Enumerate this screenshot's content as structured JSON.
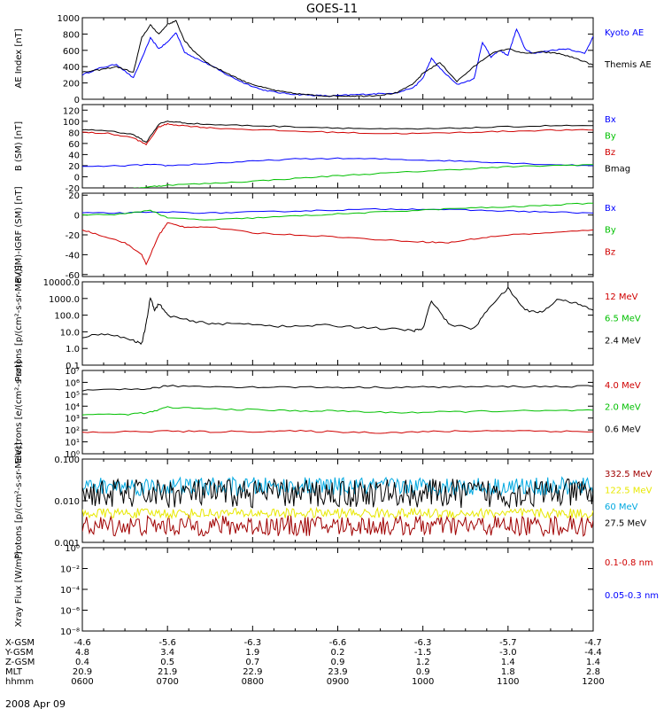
{
  "title": "GOES-11",
  "date_label": "2008 Apr 09",
  "colors": {
    "black": "#000000",
    "blue": "#0000ff",
    "green": "#00c000",
    "red": "#d00000",
    "darkred": "#a00000",
    "yellow": "#e8e800",
    "cyan": "#00a8e0"
  },
  "ephemeris": {
    "row_labels": [
      "X-GSM",
      "Y-GSM",
      "Z-GSM",
      "MLT",
      "hhmm"
    ],
    "columns": [
      {
        "x": "-4.6",
        "y": "4.8",
        "z": "0.4",
        "mlt": "20.9",
        "hhmm": "0600"
      },
      {
        "x": "-5.6",
        "y": "3.4",
        "z": "0.5",
        "mlt": "21.9",
        "hhmm": "0700"
      },
      {
        "x": "-6.3",
        "y": "1.9",
        "z": "0.7",
        "mlt": "22.9",
        "hhmm": "0800"
      },
      {
        "x": "-6.6",
        "y": "0.2",
        "z": "0.9",
        "mlt": "23.9",
        "hhmm": "0900"
      },
      {
        "x": "-6.3",
        "y": "-1.5",
        "z": "1.2",
        "mlt": "0.9",
        "hhmm": "1000"
      },
      {
        "x": "-5.7",
        "y": "-3.0",
        "z": "1.4",
        "mlt": "1.8",
        "hhmm": "1100"
      },
      {
        "x": "-4.7",
        "y": "-4.4",
        "z": "1.4",
        "mlt": "2.8",
        "hhmm": "1200"
      }
    ]
  },
  "chart_data": [
    {
      "type": "line",
      "id": "ae",
      "ylabel": "AE Index [nT]",
      "ylim": [
        0,
        1000
      ],
      "scale": "linear",
      "yticks": [
        0,
        200,
        400,
        600,
        800,
        1000
      ],
      "yticklabels": [
        "0",
        "200",
        "400",
        "600",
        "800",
        "1000"
      ],
      "x_hours": [
        6,
        12
      ],
      "series": [
        {
          "name": "Kyoto AE",
          "color": "#0000ff",
          "t": [
            6.0,
            6.2,
            6.4,
            6.6,
            6.8,
            6.9,
            7.0,
            7.1,
            7.2,
            7.3,
            7.5,
            7.7,
            7.9,
            8.1,
            8.3,
            8.5,
            8.7,
            8.9,
            9.1,
            9.3,
            9.5,
            9.7,
            9.9,
            10.0,
            10.1,
            10.2,
            10.4,
            10.6,
            10.7,
            10.8,
            10.9,
            11.0,
            11.1,
            11.2,
            11.3,
            11.5,
            11.7,
            11.9,
            12.0
          ],
          "v": [
            300,
            380,
            430,
            260,
            750,
            620,
            700,
            820,
            580,
            520,
            420,
            300,
            200,
            120,
            80,
            60,
            50,
            40,
            50,
            60,
            70,
            80,
            150,
            260,
            500,
            380,
            180,
            250,
            700,
            520,
            600,
            540,
            860,
            620,
            560,
            600,
            620,
            560,
            770
          ]
        },
        {
          "name": "Themis AE",
          "color": "#000000",
          "t": [
            6.0,
            6.2,
            6.4,
            6.6,
            6.7,
            6.8,
            6.9,
            7.0,
            7.1,
            7.2,
            7.3,
            7.5,
            7.7,
            7.9,
            8.1,
            8.3,
            8.5,
            8.7,
            8.9,
            9.1,
            9.3,
            9.5,
            9.7,
            9.9,
            10.0,
            10.2,
            10.4,
            10.6,
            10.8,
            11.0,
            11.2,
            11.4,
            11.6,
            11.8,
            12.0
          ],
          "v": [
            330,
            360,
            400,
            330,
            760,
            910,
            800,
            920,
            960,
            720,
            600,
            420,
            320,
            220,
            150,
            100,
            70,
            50,
            40,
            40,
            40,
            50,
            80,
            200,
            320,
            450,
            220,
            400,
            560,
            620,
            560,
            580,
            560,
            500,
            420
          ]
        }
      ]
    },
    {
      "type": "line",
      "id": "bsm",
      "ylabel": "B (SM) [nT]",
      "ylim": [
        -20,
        130
      ],
      "scale": "linear",
      "yticks": [
        -20,
        0,
        20,
        40,
        60,
        80,
        100,
        120
      ],
      "yticklabels": [
        "-20",
        "0",
        "20",
        "40",
        "60",
        "80",
        "100",
        "120"
      ],
      "series": [
        {
          "name": "Bx",
          "color": "#0000ff",
          "t": [
            6.0,
            6.5,
            6.8,
            7.0,
            7.5,
            8.0,
            8.5,
            9.0,
            9.5,
            10.0,
            10.5,
            11.0,
            11.5,
            12.0
          ],
          "v": [
            18,
            20,
            22,
            20,
            24,
            28,
            32,
            33,
            32,
            30,
            28,
            25,
            22,
            20
          ]
        },
        {
          "name": "By",
          "color": "#00c000",
          "t": [
            6.0,
            6.5,
            6.8,
            7.0,
            7.5,
            8.0,
            8.5,
            9.0,
            9.5,
            10.0,
            10.5,
            11.0,
            11.5,
            12.0
          ],
          "v": [
            -25,
            -22,
            -18,
            -15,
            -12,
            -8,
            -3,
            2,
            6,
            10,
            14,
            18,
            20,
            22
          ]
        },
        {
          "name": "Bz",
          "color": "#d00000",
          "t": [
            6.0,
            6.3,
            6.6,
            6.75,
            6.9,
            7.0,
            7.2,
            7.5,
            8.0,
            8.5,
            9.0,
            9.5,
            10.0,
            10.5,
            11.0,
            11.5,
            12.0
          ],
          "v": [
            80,
            78,
            70,
            58,
            90,
            95,
            92,
            88,
            85,
            82,
            80,
            78,
            78,
            80,
            82,
            84,
            84
          ]
        },
        {
          "name": "Bmag",
          "color": "#000000",
          "t": [
            6.0,
            6.3,
            6.6,
            6.75,
            6.9,
            7.0,
            7.2,
            7.5,
            8.0,
            8.5,
            9.0,
            9.5,
            10.0,
            10.5,
            11.0,
            11.5,
            12.0
          ],
          "v": [
            85,
            83,
            76,
            62,
            95,
            100,
            97,
            94,
            92,
            90,
            88,
            86,
            86,
            88,
            90,
            92,
            92
          ]
        }
      ]
    },
    {
      "type": "line",
      "id": "bdiff",
      "ylabel": "B (SM)-IGRF (SM) [nT]",
      "ylim": [
        -62,
        22
      ],
      "scale": "linear",
      "yticks": [
        -60,
        -40,
        -20,
        0,
        20
      ],
      "yticklabels": [
        "-60",
        "-40",
        "-20",
        "0",
        "20"
      ],
      "series": [
        {
          "name": "Bx",
          "color": "#0000ff",
          "t": [
            6.0,
            6.5,
            7.0,
            7.5,
            8.0,
            8.5,
            9.0,
            9.5,
            10.0,
            10.5,
            11.0,
            11.5,
            12.0
          ],
          "v": [
            2,
            2,
            3,
            2,
            3,
            4,
            5,
            6,
            6,
            5,
            4,
            3,
            2
          ]
        },
        {
          "name": "By",
          "color": "#00c000",
          "t": [
            6.0,
            6.5,
            6.8,
            7.0,
            7.5,
            8.0,
            8.5,
            9.0,
            9.5,
            10.0,
            10.5,
            11.0,
            11.5,
            12.0
          ],
          "v": [
            0,
            1,
            5,
            -3,
            -5,
            -3,
            -1,
            1,
            3,
            5,
            7,
            8,
            10,
            12
          ]
        },
        {
          "name": "Bz",
          "color": "#d00000",
          "t": [
            6.0,
            6.2,
            6.5,
            6.7,
            6.75,
            6.9,
            7.0,
            7.2,
            7.5,
            8.0,
            8.5,
            9.0,
            9.5,
            10.0,
            10.3,
            10.6,
            11.0,
            11.5,
            12.0
          ],
          "v": [
            -15,
            -20,
            -28,
            -40,
            -50,
            -20,
            -8,
            -12,
            -12,
            -18,
            -20,
            -22,
            -25,
            -27,
            -28,
            -24,
            -20,
            -18,
            -15
          ]
        }
      ]
    },
    {
      "type": "line",
      "id": "protons_low",
      "ylabel": "Protons [p/(cm²-s-sr-MeV)]",
      "ylim": [
        0.1,
        10000
      ],
      "scale": "log",
      "yticks": [
        0.1,
        1,
        10,
        100,
        1000,
        10000
      ],
      "yticklabels": [
        "0.1",
        "1.0",
        "10.0",
        "100.0",
        "1000.0",
        "10000.0"
      ],
      "series": [
        {
          "name": "12 MeV",
          "color": "#d00000",
          "t": [],
          "v": []
        },
        {
          "name": "6.5 MeV",
          "color": "#00c000",
          "t": [],
          "v": []
        },
        {
          "name": "2.4 MeV",
          "color": "#000000",
          "t": [
            6.0,
            6.3,
            6.6,
            6.7,
            6.75,
            6.8,
            6.85,
            6.9,
            7.0,
            7.3,
            7.6,
            8.0,
            8.4,
            8.8,
            9.2,
            9.6,
            9.9,
            10.0,
            10.1,
            10.3,
            10.6,
            10.8,
            11.0,
            11.2,
            11.4,
            11.6,
            11.8,
            12.0
          ],
          "v": [
            5,
            8,
            3,
            2,
            30,
            1200,
            200,
            500,
            100,
            40,
            30,
            30,
            20,
            25,
            20,
            15,
            12,
            15,
            800,
            30,
            15,
            400,
            4000,
            200,
            150,
            1000,
            500,
            200
          ]
        }
      ]
    },
    {
      "type": "line",
      "id": "electrons",
      "ylabel": "Electrons [e/(cm²-s-sr)]",
      "ylim": [
        1,
        10000000
      ],
      "scale": "log",
      "yticks": [
        1,
        10,
        100,
        1000,
        10000,
        100000,
        1000000,
        10000000
      ],
      "yticklabels": [
        "10⁰",
        "10¹",
        "10²",
        "10³",
        "10⁴",
        "10⁵",
        "10⁶",
        "10⁷"
      ],
      "series": [
        {
          "name": "4.0 MeV",
          "color": "#d00000",
          "t": [
            6.0,
            6.5,
            7.0,
            7.5,
            8.0,
            8.5,
            9.0,
            9.5,
            10.0,
            10.5,
            11.0,
            11.5,
            12.0
          ],
          "v": [
            60,
            70,
            80,
            70,
            75,
            80,
            70,
            60,
            70,
            80,
            90,
            80,
            70
          ]
        },
        {
          "name": "2.0 MeV",
          "color": "#00c000",
          "t": [
            6.0,
            6.5,
            6.8,
            7.0,
            7.5,
            8.0,
            8.5,
            9.0,
            9.5,
            10.0,
            10.5,
            11.0,
            11.5,
            12.0
          ],
          "v": [
            2000,
            2000,
            3000,
            8000,
            6000,
            5000,
            4000,
            4000,
            3000,
            3000,
            3500,
            4000,
            4000,
            4500
          ]
        },
        {
          "name": "0.6 MeV",
          "color": "#000000",
          "t": [
            6.0,
            6.5,
            6.8,
            7.0,
            7.5,
            8.0,
            8.5,
            9.0,
            9.5,
            10.0,
            10.5,
            11.0,
            11.5,
            12.0
          ],
          "v": [
            200000,
            250000,
            300000,
            500000,
            450000,
            400000,
            400000,
            380000,
            380000,
            400000,
            420000,
            450000,
            450000,
            460000
          ]
        }
      ]
    },
    {
      "type": "line",
      "id": "protons_high",
      "ylabel": "Protons [p/(cm²-s-sr-MeV)]",
      "ylim": [
        0.001,
        0.1
      ],
      "scale": "log",
      "yticks": [
        0.001,
        0.01,
        0.1
      ],
      "yticklabels": [
        "0.001",
        "0.010",
        "0.100"
      ],
      "series": [
        {
          "name": "332.5 MeV",
          "color": "#a00000",
          "level": 0.0025,
          "spread": 0.25
        },
        {
          "name": "122.5 MeV",
          "color": "#e8e800",
          "level": 0.005,
          "spread": 0.12
        },
        {
          "name": "60 MeV",
          "color": "#00a8e0",
          "level": 0.022,
          "spread": 0.22
        },
        {
          "name": "27.5 MeV",
          "color": "#000000",
          "level": 0.015,
          "spread": 0.35
        }
      ]
    },
    {
      "type": "line",
      "id": "xray",
      "ylabel": "Xray Flux [W/m²]",
      "ylim": [
        1e-08,
        1
      ],
      "scale": "log",
      "yticks": [
        1e-08,
        1e-06,
        0.0001,
        0.01,
        1
      ],
      "yticklabels": [
        "10⁻⁸",
        "10⁻⁶",
        "10⁻⁴",
        "10⁻²",
        "10⁰"
      ],
      "series": [
        {
          "name": "0.1-0.8 nm",
          "color": "#d00000",
          "t": [],
          "v": []
        },
        {
          "name": "0.05-0.3 nm",
          "color": "#0000ff",
          "t": [],
          "v": []
        }
      ]
    }
  ]
}
